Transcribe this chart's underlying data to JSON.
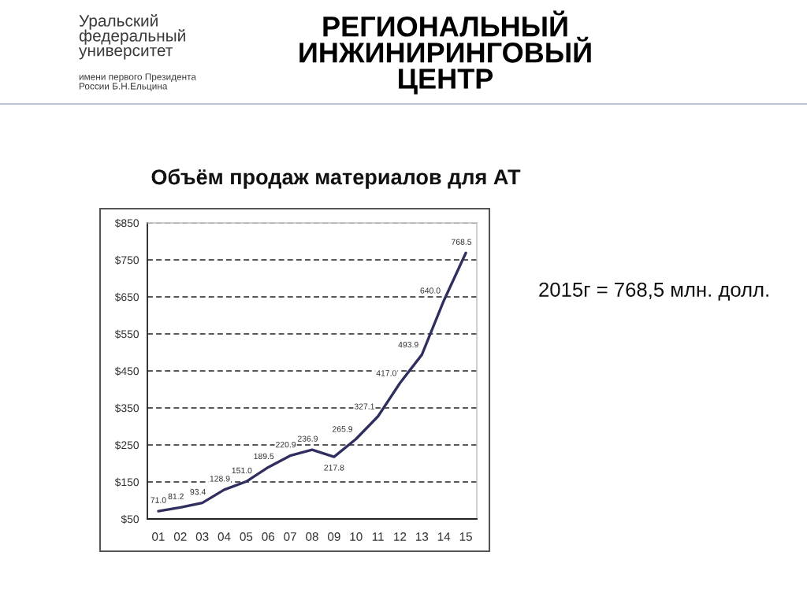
{
  "chart_data": {
    "type": "line",
    "title": "РЕГИОНАЛЬНЫЙ\nИНЖИНИРИНГОВЫЙ\nЦЕНТР",
    "subtitle": "Объём продаж материалов для АТ",
    "annotations": [
      "Уральский\nфедеральный\nуниверситет",
      "имени первого Президента\nРоссии Б.Н.Ельцина",
      "2015г = 768,5 млн. долл."
    ],
    "categories": [
      "01",
      "02",
      "03",
      "04",
      "05",
      "06",
      "07",
      "08",
      "09",
      "10",
      "11",
      "12",
      "13",
      "14",
      "15"
    ],
    "series": [
      {
        "color": "#2f2e5f",
        "values": [
          71.0,
          81.2,
          93.4,
          128.9,
          151.0,
          189.5,
          220.9,
          236.9,
          217.8,
          265.9,
          327.1,
          417.0,
          493.9,
          640.0,
          768.5
        ],
        "value_labels": [
          "71.0",
          "81.2",
          "93.4",
          "128.9",
          "151.0",
          "189.5",
          "220.9",
          "236.9",
          "217.8",
          "265.9",
          "327.1",
          "417.0",
          "493.9",
          "640.0",
          "768.5"
        ]
      }
    ],
    "ylim": [
      50,
      850
    ],
    "yticks": [
      {
        "value": 50,
        "label": "$50"
      },
      {
        "value": 150,
        "label": "$150"
      },
      {
        "value": 250,
        "label": "$250"
      },
      {
        "value": 350,
        "label": "$350"
      },
      {
        "value": 450,
        "label": "$450"
      },
      {
        "value": 550,
        "label": "$550"
      },
      {
        "value": 650,
        "label": "$650"
      },
      {
        "value": 750,
        "label": "$750"
      },
      {
        "value": 850,
        "label": "$850"
      }
    ],
    "grid": "y",
    "marker": "none",
    "line_style": "solid"
  }
}
